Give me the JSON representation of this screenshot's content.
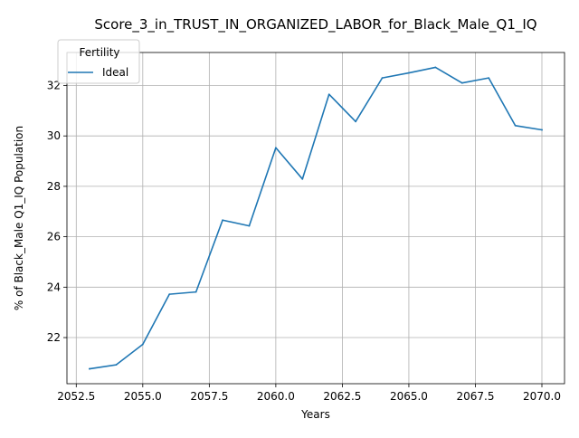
{
  "chart_data": {
    "type": "line",
    "title": "Score_3_in_TRUST_IN_ORGANIZED_LABOR_for_Black_Male_Q1_IQ",
    "xlabel": "Years",
    "ylabel": "% of Black_Male Q1_IQ Population",
    "x": [
      2053,
      2054,
      2055,
      2056,
      2057,
      2058,
      2059,
      2060,
      2061,
      2062,
      2063,
      2064,
      2065,
      2066,
      2067,
      2068,
      2069,
      2070
    ],
    "series": [
      {
        "name": "Ideal",
        "color": "#1f77b4",
        "values": [
          20.76,
          20.92,
          21.73,
          23.72,
          23.81,
          26.66,
          26.43,
          29.53,
          28.29,
          31.65,
          30.57,
          32.3,
          32.5,
          32.72,
          32.1,
          32.3,
          30.41,
          30.24
        ]
      }
    ],
    "xlim": [
      2052.15,
      2070.85
    ],
    "ylim": [
      20.17,
      33.31
    ],
    "xticks": [
      2052.5,
      2055,
      2057.5,
      2060,
      2062.5,
      2065,
      2067.5,
      2070
    ],
    "xtick_labels": [
      "2052.5",
      "2055.0",
      "2057.5",
      "2060.0",
      "2062.5",
      "2065.0",
      "2067.5",
      "2070.0"
    ],
    "yticks": [
      22,
      24,
      26,
      28,
      30,
      32
    ],
    "ytick_labels": [
      "22",
      "24",
      "26",
      "28",
      "30",
      "32"
    ],
    "grid": true,
    "legend": {
      "title": "Fertility",
      "placement": "upper left"
    }
  }
}
